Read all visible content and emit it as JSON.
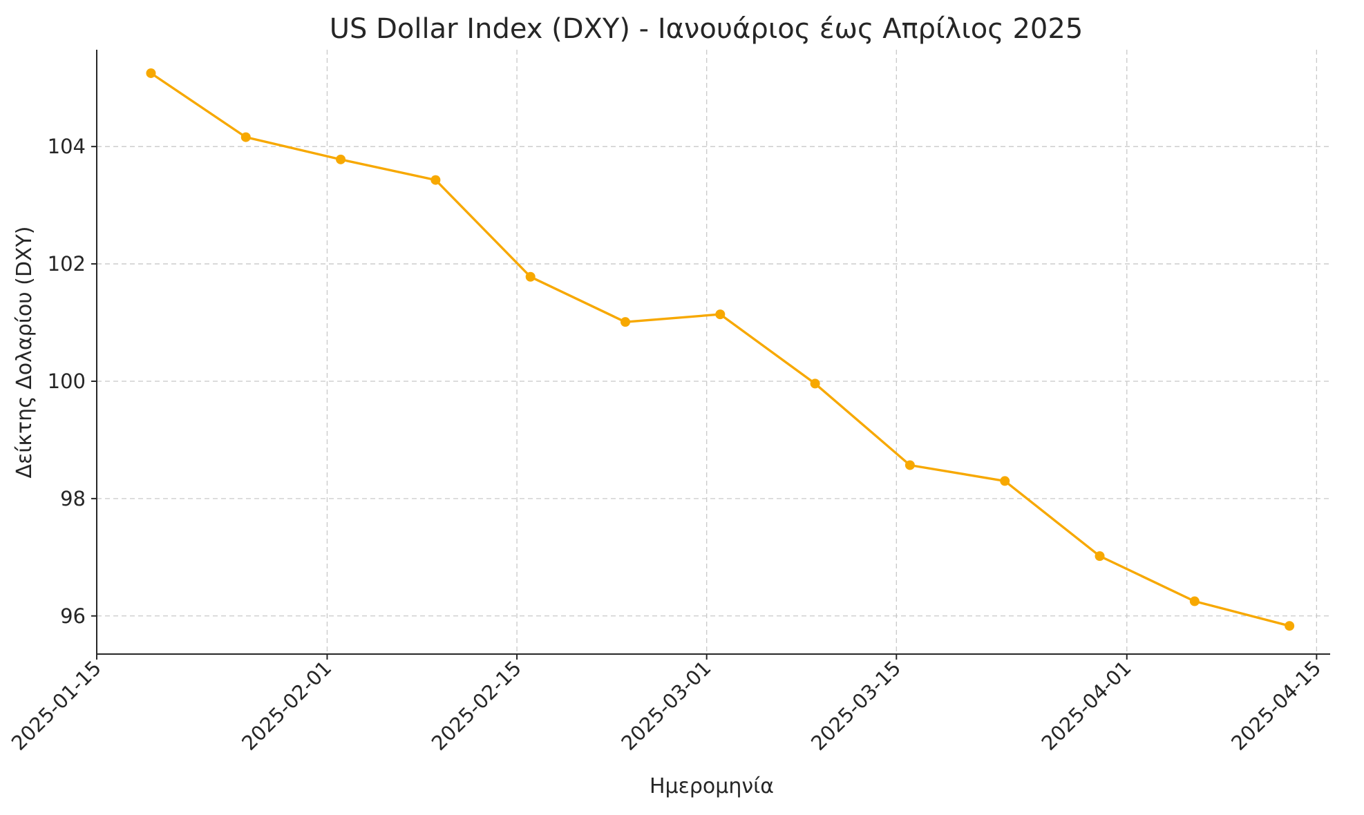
{
  "chart_data": {
    "type": "line",
    "title": "US Dollar Index (DXY) - Ιανουάριος έως Απρίλιος 2025",
    "xlabel": "Ημερομηνία",
    "ylabel": "Δείκτης Δολαρίου (DXY)",
    "x_ticks": [
      "2025-01-15",
      "2025-02-01",
      "2025-02-15",
      "2025-03-01",
      "2025-03-15",
      "2025-04-01",
      "2025-04-15"
    ],
    "y_ticks": [
      96,
      98,
      100,
      102,
      104
    ],
    "xlim": [
      "2025-01-15",
      "2025-04-16"
    ],
    "ylim": [
      95.35,
      105.65
    ],
    "grid": true,
    "series": [
      {
        "color": "#f7a800",
        "x": [
          "2025-01-19",
          "2025-01-26",
          "2025-02-02",
          "2025-02-09",
          "2025-02-16",
          "2025-02-23",
          "2025-03-02",
          "2025-03-09",
          "2025-03-16",
          "2025-03-23",
          "2025-03-30",
          "2025-04-06",
          "2025-04-13"
        ],
        "values": [
          105.25,
          104.16,
          103.78,
          103.43,
          101.78,
          101.01,
          101.14,
          99.96,
          98.57,
          98.3,
          97.02,
          96.25,
          95.83
        ]
      }
    ]
  }
}
